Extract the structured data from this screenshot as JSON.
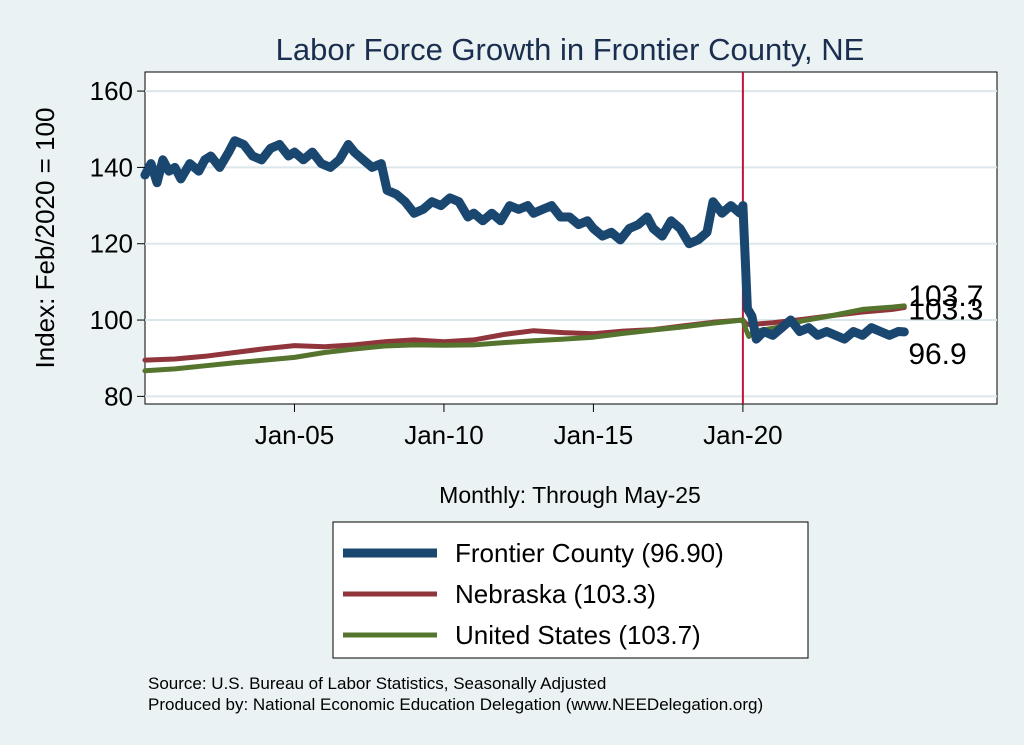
{
  "chart_data": {
    "type": "line",
    "title": "Labor Force Growth in Frontier  County, NE",
    "ylabel": "Index: Feb/2020 = 100",
    "xlabel": "Monthly: Through May-25",
    "ylim": [
      78,
      165
    ],
    "xlim": [
      2000.0,
      2028.5
    ],
    "yticks": [
      80,
      100,
      120,
      140,
      160
    ],
    "xticks": [
      {
        "value": 2005.0,
        "label": "Jan-05"
      },
      {
        "value": 2010.0,
        "label": "Jan-10"
      },
      {
        "value": 2015.0,
        "label": "Jan-15"
      },
      {
        "value": 2020.0,
        "label": "Jan-20"
      }
    ],
    "reference_line_x": 2020.0,
    "grid": "horizontal",
    "series": [
      {
        "name": "Frontier  County (96.90)",
        "color": "#1a476f",
        "end_label": "96.9",
        "points": [
          [
            2000.0,
            138
          ],
          [
            2000.2,
            141
          ],
          [
            2000.4,
            136
          ],
          [
            2000.6,
            142
          ],
          [
            2000.8,
            139
          ],
          [
            2001.0,
            140
          ],
          [
            2001.2,
            137
          ],
          [
            2001.5,
            141
          ],
          [
            2001.8,
            139
          ],
          [
            2002.0,
            142
          ],
          [
            2002.2,
            143
          ],
          [
            2002.5,
            140
          ],
          [
            2002.8,
            144
          ],
          [
            2003.0,
            147
          ],
          [
            2003.3,
            146
          ],
          [
            2003.6,
            143
          ],
          [
            2003.9,
            142
          ],
          [
            2004.2,
            145
          ],
          [
            2004.5,
            146
          ],
          [
            2004.8,
            143
          ],
          [
            2005.0,
            144
          ],
          [
            2005.3,
            142
          ],
          [
            2005.6,
            144
          ],
          [
            2005.9,
            141
          ],
          [
            2006.2,
            140
          ],
          [
            2006.5,
            142
          ],
          [
            2006.8,
            146
          ],
          [
            2007.0,
            144
          ],
          [
            2007.3,
            142
          ],
          [
            2007.6,
            140
          ],
          [
            2007.9,
            141
          ],
          [
            2008.1,
            134
          ],
          [
            2008.4,
            133
          ],
          [
            2008.7,
            131
          ],
          [
            2009.0,
            128
          ],
          [
            2009.3,
            129
          ],
          [
            2009.6,
            131
          ],
          [
            2009.9,
            130
          ],
          [
            2010.2,
            132
          ],
          [
            2010.5,
            131
          ],
          [
            2010.8,
            127
          ],
          [
            2011.0,
            128
          ],
          [
            2011.3,
            126
          ],
          [
            2011.6,
            128
          ],
          [
            2011.9,
            126
          ],
          [
            2012.2,
            130
          ],
          [
            2012.5,
            129
          ],
          [
            2012.8,
            130
          ],
          [
            2013.0,
            128
          ],
          [
            2013.3,
            129
          ],
          [
            2013.6,
            130
          ],
          [
            2013.9,
            127
          ],
          [
            2014.2,
            127
          ],
          [
            2014.5,
            125
          ],
          [
            2014.8,
            126
          ],
          [
            2015.0,
            124
          ],
          [
            2015.3,
            122
          ],
          [
            2015.6,
            123
          ],
          [
            2015.9,
            121
          ],
          [
            2016.2,
            124
          ],
          [
            2016.5,
            125
          ],
          [
            2016.8,
            127
          ],
          [
            2017.0,
            124
          ],
          [
            2017.3,
            122
          ],
          [
            2017.6,
            126
          ],
          [
            2017.9,
            124
          ],
          [
            2018.2,
            120
          ],
          [
            2018.5,
            121
          ],
          [
            2018.8,
            123
          ],
          [
            2019.0,
            131
          ],
          [
            2019.3,
            128
          ],
          [
            2019.6,
            130
          ],
          [
            2019.9,
            128
          ],
          [
            2020.0,
            130
          ],
          [
            2020.15,
            103
          ],
          [
            2020.3,
            101
          ],
          [
            2020.45,
            95
          ],
          [
            2020.7,
            97
          ],
          [
            2021.0,
            96
          ],
          [
            2021.3,
            98
          ],
          [
            2021.6,
            100
          ],
          [
            2021.9,
            97
          ],
          [
            2022.2,
            98
          ],
          [
            2022.5,
            96
          ],
          [
            2022.8,
            97
          ],
          [
            2023.1,
            96
          ],
          [
            2023.4,
            95
          ],
          [
            2023.7,
            97
          ],
          [
            2024.0,
            96
          ],
          [
            2024.3,
            98
          ],
          [
            2024.6,
            97
          ],
          [
            2024.9,
            96
          ],
          [
            2025.2,
            97
          ],
          [
            2025.4,
            96.9
          ]
        ]
      },
      {
        "name": "Nebraska (103.3)",
        "color": "#90353b",
        "end_label": "103.3",
        "points": [
          [
            2000.0,
            89.5
          ],
          [
            2001.0,
            89.8
          ],
          [
            2002.0,
            90.5
          ],
          [
            2003.0,
            91.5
          ],
          [
            2004.0,
            92.5
          ],
          [
            2005.0,
            93.3
          ],
          [
            2006.0,
            93.0
          ],
          [
            2007.0,
            93.5
          ],
          [
            2008.0,
            94.3
          ],
          [
            2009.0,
            94.8
          ],
          [
            2010.0,
            94.3
          ],
          [
            2011.0,
            94.8
          ],
          [
            2012.0,
            96.2
          ],
          [
            2013.0,
            97.2
          ],
          [
            2014.0,
            96.7
          ],
          [
            2015.0,
            96.4
          ],
          [
            2016.0,
            97.1
          ],
          [
            2017.0,
            97.5
          ],
          [
            2018.0,
            98.5
          ],
          [
            2019.0,
            99.4
          ],
          [
            2020.0,
            100.0
          ],
          [
            2020.1,
            99.0
          ],
          [
            2020.25,
            98.8
          ],
          [
            2021.0,
            99.3
          ],
          [
            2022.0,
            100.2
          ],
          [
            2023.0,
            101.2
          ],
          [
            2024.0,
            102.1
          ],
          [
            2025.0,
            102.8
          ],
          [
            2025.4,
            103.3
          ]
        ]
      },
      {
        "name": "United States (103.7)",
        "color": "#55752f",
        "end_label": "103.7",
        "points": [
          [
            2000.0,
            86.7
          ],
          [
            2001.0,
            87.2
          ],
          [
            2002.0,
            88.0
          ],
          [
            2003.0,
            88.8
          ],
          [
            2004.0,
            89.5
          ],
          [
            2005.0,
            90.2
          ],
          [
            2006.0,
            91.5
          ],
          [
            2007.0,
            92.4
          ],
          [
            2008.0,
            93.2
          ],
          [
            2009.0,
            93.5
          ],
          [
            2010.0,
            93.4
          ],
          [
            2011.0,
            93.5
          ],
          [
            2012.0,
            94.1
          ],
          [
            2013.0,
            94.6
          ],
          [
            2014.0,
            95.0
          ],
          [
            2015.0,
            95.5
          ],
          [
            2016.0,
            96.5
          ],
          [
            2017.0,
            97.4
          ],
          [
            2018.0,
            98.2
          ],
          [
            2019.0,
            99.2
          ],
          [
            2020.0,
            100.0
          ],
          [
            2020.1,
            97.5
          ],
          [
            2020.2,
            95.7
          ],
          [
            2020.35,
            97.0
          ],
          [
            2021.0,
            97.8
          ],
          [
            2022.0,
            99.8
          ],
          [
            2023.0,
            101.2
          ],
          [
            2024.0,
            102.8
          ],
          [
            2025.0,
            103.4
          ],
          [
            2025.4,
            103.7
          ]
        ]
      }
    ]
  },
  "source_lines": [
    "Source: U.S. Bureau of Labor Statistics, Seasonally Adjusted",
    "Produced by: National Economic Education Delegation (www.NEEDelegation.org)"
  ]
}
